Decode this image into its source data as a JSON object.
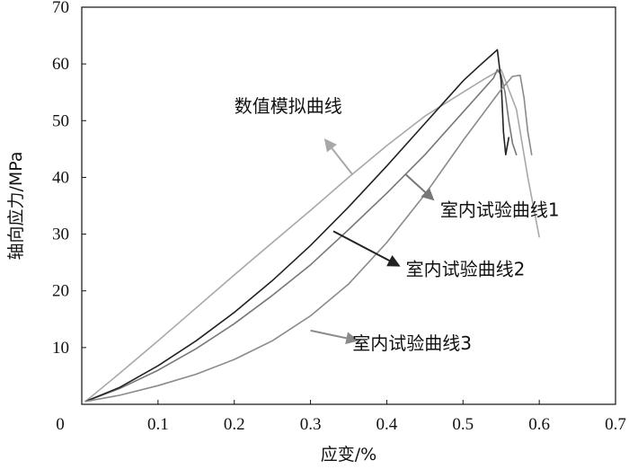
{
  "chart_data": {
    "type": "line",
    "title": "",
    "xlabel": "应变/%",
    "ylabel": "轴向应力/MPa",
    "xlim": [
      0,
      0.7
    ],
    "ylim": [
      0,
      70
    ],
    "xticks": [
      0,
      0.1,
      0.2,
      0.3,
      0.4,
      0.5,
      0.6,
      0.7
    ],
    "xtick_labels": [
      "0",
      "0.1",
      "0.2",
      "0.3",
      "0.4",
      "0.5",
      "0.6",
      "0.7"
    ],
    "yticks": [
      0,
      10,
      20,
      30,
      40,
      50,
      60,
      70
    ],
    "ytick_labels": [
      "",
      "10",
      "20",
      "30",
      "40",
      "50",
      "60",
      "70"
    ],
    "grid": false,
    "legend": "none",
    "series": [
      {
        "name": "数值模拟曲线",
        "color": "#a8a8a8",
        "x": [
          0.005,
          0.05,
          0.1,
          0.15,
          0.2,
          0.25,
          0.3,
          0.35,
          0.4,
          0.45,
          0.5,
          0.53,
          0.55,
          0.57,
          0.585,
          0.6
        ],
        "y": [
          0.5,
          5.5,
          11.2,
          17.0,
          22.8,
          28.5,
          34.2,
          40.0,
          45.6,
          50.8,
          55.0,
          57.5,
          59.0,
          52.0,
          40.0,
          29.5
        ]
      },
      {
        "name": "室内试验曲线1",
        "color": "#777777",
        "x": [
          0.005,
          0.05,
          0.1,
          0.15,
          0.2,
          0.25,
          0.3,
          0.35,
          0.4,
          0.45,
          0.5,
          0.54,
          0.545,
          0.55,
          0.555,
          0.56,
          0.565,
          0.57
        ],
        "y": [
          0.5,
          2.8,
          6.0,
          9.8,
          14.2,
          19.2,
          24.6,
          30.8,
          37.2,
          44.0,
          51.5,
          57.5,
          59.0,
          58.0,
          55.0,
          50.0,
          46.0,
          44.0
        ]
      },
      {
        "name": "室内试验曲线2",
        "color": "#222222",
        "x": [
          0.005,
          0.05,
          0.1,
          0.15,
          0.2,
          0.25,
          0.3,
          0.35,
          0.4,
          0.45,
          0.5,
          0.52,
          0.545,
          0.55,
          0.553,
          0.556,
          0.56
        ],
        "y": [
          0.5,
          3.0,
          6.8,
          11.2,
          16.2,
          21.8,
          28.0,
          34.8,
          42.0,
          49.5,
          57.0,
          59.5,
          62.5,
          57.0,
          48.0,
          44.0,
          47.0
        ]
      },
      {
        "name": "室内试验曲线3",
        "color": "#8a8a8a",
        "x": [
          0.005,
          0.05,
          0.1,
          0.15,
          0.2,
          0.25,
          0.3,
          0.35,
          0.4,
          0.45,
          0.5,
          0.55,
          0.565,
          0.575,
          0.58,
          0.585,
          0.59
        ],
        "y": [
          0.5,
          1.6,
          3.3,
          5.3,
          7.9,
          11.2,
          15.6,
          21.2,
          28.5,
          37.0,
          46.5,
          55.5,
          57.8,
          58.0,
          54.0,
          48.0,
          44.0
        ]
      }
    ],
    "annotations": [
      {
        "text": "数值模拟曲线",
        "series": "数值模拟曲线",
        "text_xy": [
          0.2,
          51.5
        ],
        "arrow_to": [
          0.32,
          46.5
        ],
        "arrow_from": [
          0.355,
          40.5
        ]
      },
      {
        "text": "室内试验曲线1",
        "series": "室内试验曲线1",
        "text_xy": [
          0.47,
          33.2
        ],
        "arrow_to": [
          0.46,
          36.2
        ],
        "arrow_from": [
          0.425,
          40.5
        ]
      },
      {
        "text": "室内试验曲线2",
        "series": "室内试验曲线2",
        "text_xy": [
          0.425,
          22.7
        ],
        "arrow_to": [
          0.415,
          24.5
        ],
        "arrow_from": [
          0.33,
          30.5
        ]
      },
      {
        "text": "室内试验曲线3",
        "series": "室内试验曲线3",
        "text_xy": [
          0.355,
          9.7
        ],
        "arrow_to": [
          0.36,
          11.3
        ],
        "arrow_from": [
          0.3,
          13.0
        ]
      }
    ]
  }
}
